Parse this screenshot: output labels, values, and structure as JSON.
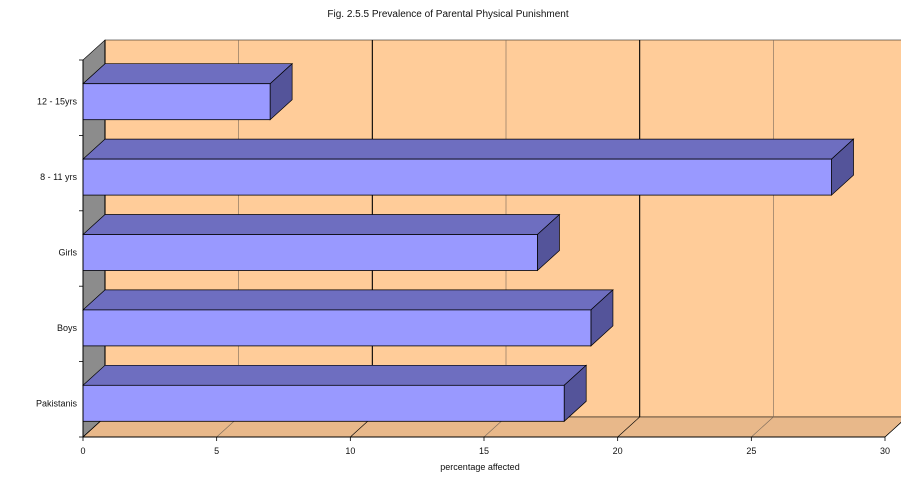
{
  "chart_data": {
    "type": "bar",
    "orientation": "horizontal",
    "style": "3d",
    "title": "Fig. 2.5.5 Prevalence of Parental Physical Punishment",
    "xlabel": "percentage affected",
    "ylabel": "",
    "xlim": [
      0,
      30
    ],
    "xticks": [
      "0",
      "5",
      "10",
      "15",
      "20",
      "25",
      "30"
    ],
    "categories": [
      "12 - 15yrs",
      "8 - 11 yrs",
      "Girls",
      "Boys",
      "Pakistanis"
    ],
    "values": [
      7,
      28,
      17,
      19,
      18
    ],
    "grid": true,
    "legend": "none",
    "colors": {
      "bar_front": "#9999ff",
      "bar_top": "#6e6ec0",
      "bar_side": "#54549a",
      "plot_back": "#ffcc99",
      "plot_floor": "#e8b88a",
      "left_wall": "#8c8c8c",
      "grid": "#000000",
      "grid_minor": "#7a6a5a"
    }
  }
}
